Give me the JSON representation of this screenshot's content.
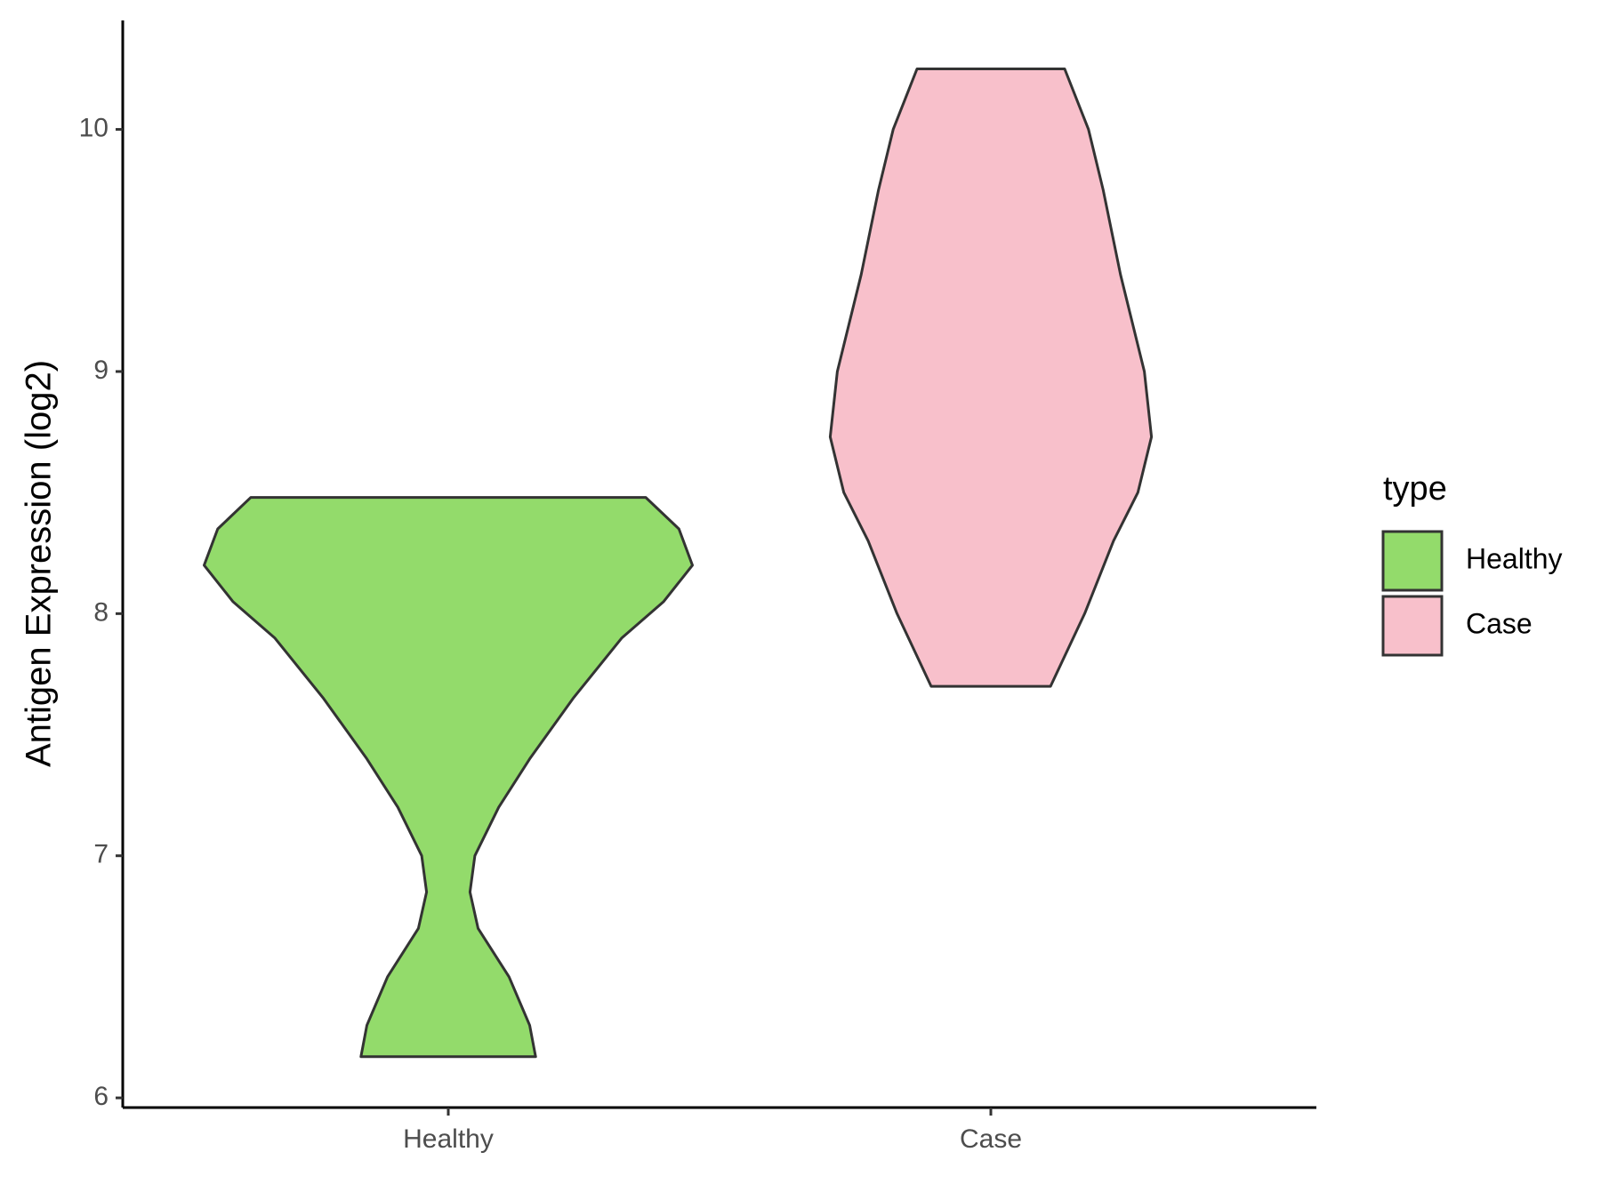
{
  "chart_data": {
    "type": "violin",
    "y_label": "Antigen Expression (log2)",
    "categories": [
      "Healthy",
      "Case"
    ],
    "ylim": [
      5.96,
      10.45
    ],
    "yticks": [
      6,
      7,
      8,
      9,
      10
    ],
    "legend_title": "type",
    "legend_position": "right",
    "outline_color": "#333333",
    "series": [
      {
        "name": "Healthy",
        "color": "#93db6b",
        "y": [
          8.48,
          8.35,
          8.2,
          8.05,
          7.9,
          7.65,
          7.4,
          7.2,
          7.0,
          6.85,
          6.7,
          6.5,
          6.3,
          6.17
        ],
        "width": [
          0.364,
          0.425,
          0.45,
          0.397,
          0.32,
          0.23,
          0.15,
          0.093,
          0.049,
          0.04,
          0.055,
          0.112,
          0.15,
          0.161
        ]
      },
      {
        "name": "Case",
        "color": "#f8c0cb",
        "y": [
          10.25,
          10.0,
          9.75,
          9.4,
          9.0,
          8.73,
          8.5,
          8.3,
          8.0,
          7.7
        ],
        "width": [
          0.136,
          0.18,
          0.207,
          0.239,
          0.283,
          0.296,
          0.271,
          0.226,
          0.173,
          0.11
        ]
      }
    ]
  }
}
